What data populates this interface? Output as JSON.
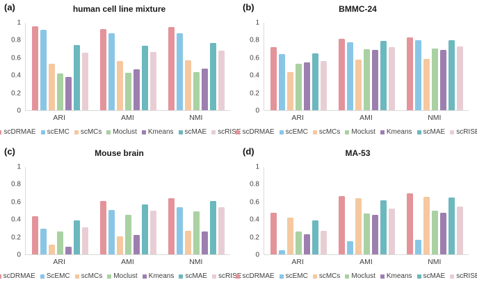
{
  "figure": {
    "background": "#ffffff",
    "axis_color": "#d9d9d9",
    "text_color": "#404040"
  },
  "chart_data": [
    {
      "panel_label": "(a)",
      "title": "human cell line mixture",
      "type": "bar",
      "categories": [
        "ARI",
        "AMI",
        "NMI"
      ],
      "series": [
        {
          "name": "scDRMAE",
          "color": "#E39399",
          "values": [
            0.96,
            0.93,
            0.95
          ]
        },
        {
          "name": "scEMC",
          "color": "#89C6E6",
          "values": [
            0.92,
            0.88,
            0.88
          ]
        },
        {
          "name": "scMCs",
          "color": "#F5C8A0",
          "values": [
            0.53,
            0.56,
            0.57
          ]
        },
        {
          "name": "Moclust",
          "color": "#A9D1A2",
          "values": [
            0.42,
            0.43,
            0.44
          ]
        },
        {
          "name": "Kmeans",
          "color": "#9D7FAF",
          "values": [
            0.38,
            0.47,
            0.48
          ]
        },
        {
          "name": "scMAE",
          "color": "#6BB8BE",
          "values": [
            0.75,
            0.74,
            0.77
          ]
        },
        {
          "name": "scRISE",
          "color": "#E8CED4",
          "values": [
            0.66,
            0.67,
            0.68
          ]
        }
      ],
      "ylim": [
        0,
        1
      ],
      "yticks": [
        "1",
        "0.8",
        "0.6",
        "0.4",
        "0.2",
        "0"
      ],
      "grid": false,
      "legend_position": "bottom"
    },
    {
      "panel_label": "(b)",
      "title": "BMMC-24",
      "type": "bar",
      "categories": [
        "ARI",
        "AMI",
        "NMI"
      ],
      "series": [
        {
          "name": "scDRMAE",
          "color": "#E39399",
          "values": [
            0.72,
            0.82,
            0.83
          ]
        },
        {
          "name": "scEMC",
          "color": "#89C6E6",
          "values": [
            0.64,
            0.78,
            0.8
          ]
        },
        {
          "name": "scMCs",
          "color": "#F5C8A0",
          "values": [
            0.44,
            0.58,
            0.59
          ]
        },
        {
          "name": "Moclust",
          "color": "#A9D1A2",
          "values": [
            0.53,
            0.7,
            0.71
          ]
        },
        {
          "name": "Kmeans",
          "color": "#9D7FAF",
          "values": [
            0.55,
            0.69,
            0.69
          ]
        },
        {
          "name": "scMAE",
          "color": "#6BB8BE",
          "values": [
            0.65,
            0.79,
            0.8
          ]
        },
        {
          "name": "scRISE",
          "color": "#E8CED4",
          "values": [
            0.56,
            0.72,
            0.73
          ]
        }
      ],
      "ylim": [
        0,
        1
      ],
      "yticks": [
        "1",
        "0.8",
        "0.6",
        "0.4",
        "0.2",
        "0"
      ],
      "grid": false,
      "legend_position": "bottom"
    },
    {
      "panel_label": "(c)",
      "title": "Mouse brain",
      "type": "bar",
      "categories": [
        "ARI",
        "AMI",
        "NMI"
      ],
      "series": [
        {
          "name": "scDRMAE",
          "color": "#E39399",
          "values": [
            0.44,
            0.61,
            0.64
          ]
        },
        {
          "name": "ScEMC",
          "color": "#89C6E6",
          "values": [
            0.29,
            0.51,
            0.54
          ]
        },
        {
          "name": "scMCs",
          "color": "#F5C8A0",
          "values": [
            0.11,
            0.21,
            0.27
          ]
        },
        {
          "name": "Moclust",
          "color": "#A9D1A2",
          "values": [
            0.26,
            0.45,
            0.49
          ]
        },
        {
          "name": "Kmeans",
          "color": "#9D7FAF",
          "values": [
            0.09,
            0.22,
            0.26
          ]
        },
        {
          "name": "scMAE",
          "color": "#6BB8BE",
          "values": [
            0.39,
            0.57,
            0.61
          ]
        },
        {
          "name": "scRISE",
          "color": "#E8CED4",
          "values": [
            0.31,
            0.5,
            0.54
          ]
        }
      ],
      "ylim": [
        0,
        1
      ],
      "yticks": [
        "1",
        "0.8",
        "0.6",
        "0.4",
        "0.2",
        "0"
      ],
      "grid": false,
      "legend_position": "bottom"
    },
    {
      "panel_label": "(d)",
      "title": "MA-53",
      "type": "bar",
      "categories": [
        "ARI",
        "AMI",
        "NMI"
      ],
      "series": [
        {
          "name": "scDRMAE",
          "color": "#E39399",
          "values": [
            0.48,
            0.67,
            0.7
          ]
        },
        {
          "name": "scEMC",
          "color": "#89C6E6",
          "values": [
            0.05,
            0.15,
            0.17
          ]
        },
        {
          "name": "scMCs",
          "color": "#F5C8A0",
          "values": [
            0.42,
            0.64,
            0.66
          ]
        },
        {
          "name": "Moclust",
          "color": "#A9D1A2",
          "values": [
            0.26,
            0.47,
            0.5
          ]
        },
        {
          "name": "Kmeans",
          "color": "#9D7FAF",
          "values": [
            0.23,
            0.45,
            0.48
          ]
        },
        {
          "name": "scMAE",
          "color": "#6BB8BE",
          "values": [
            0.39,
            0.62,
            0.65
          ]
        },
        {
          "name": "scRISE",
          "color": "#E8CED4",
          "values": [
            0.27,
            0.52,
            0.55
          ]
        }
      ],
      "ylim": [
        0,
        1
      ],
      "yticks": [
        "1",
        "0.8",
        "0.6",
        "0.4",
        "0.2",
        "0"
      ],
      "grid": false,
      "legend_position": "bottom"
    }
  ]
}
